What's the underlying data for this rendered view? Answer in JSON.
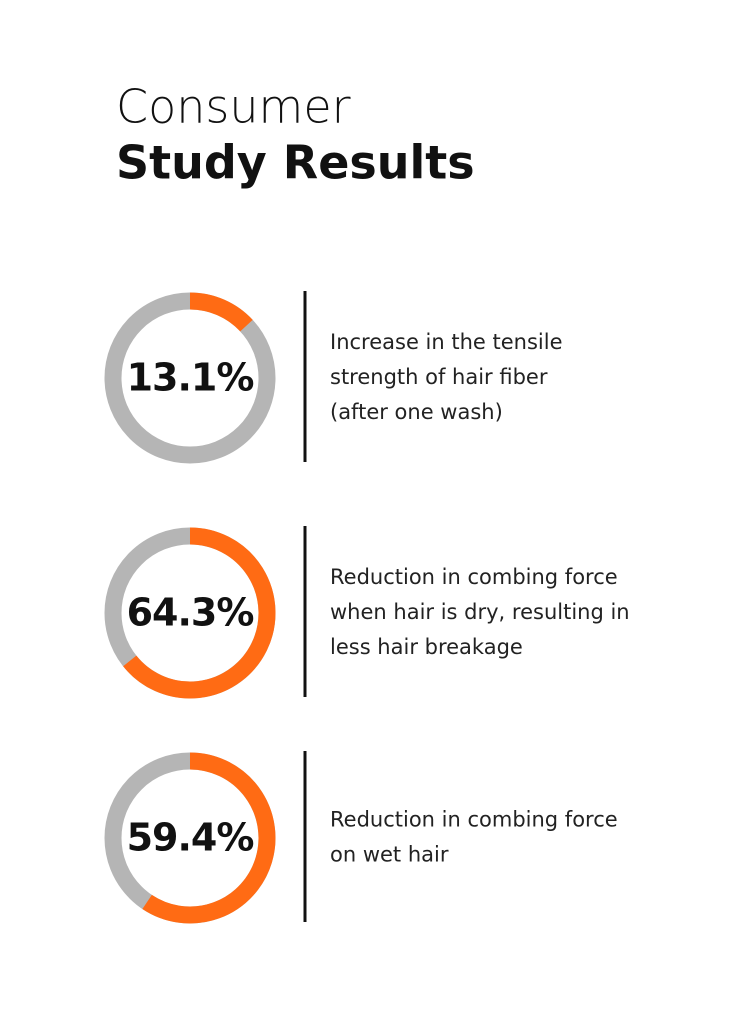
{
  "title": [
    "Consumer",
    "Study Results"
  ],
  "chart_data": [
    {
      "type": "donut",
      "value": 13.1,
      "value_label": "13.1%",
      "ylim": [
        0,
        100
      ],
      "description": [
        "Increase in the tensile",
        "strength of hair fiber",
        "(after one wash)"
      ]
    },
    {
      "type": "donut",
      "value": 64.3,
      "value_label": "64.3%",
      "ylim": [
        0,
        100
      ],
      "description": [
        "Reduction in combing force",
        "when hair is dry, resulting in",
        "less hair breakage"
      ]
    },
    {
      "type": "donut",
      "value": 59.4,
      "value_label": "59.4%",
      "ylim": [
        0,
        100
      ],
      "description": [
        "Reduction in combing force",
        "on wet hair"
      ]
    }
  ]
}
